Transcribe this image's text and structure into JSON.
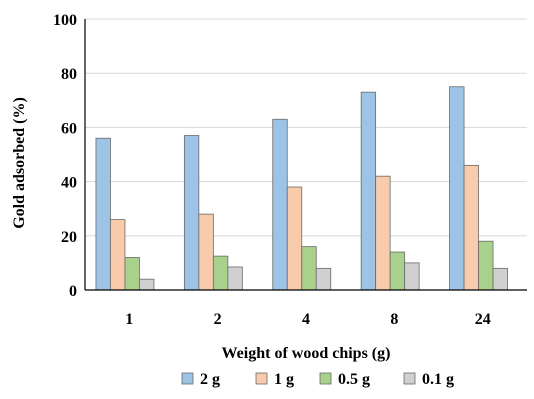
{
  "chart_data": {
    "type": "bar",
    "xlabel": "Weight of wood chips (g)",
    "ylabel": "Gold adsorbed (%)",
    "ylim": [
      0,
      100
    ],
    "yticks": [
      0,
      20,
      40,
      60,
      80,
      100
    ],
    "categories": [
      "1",
      "2",
      "4",
      "8",
      "24"
    ],
    "grid": true,
    "legend_position": "bottom",
    "series": [
      {
        "name": "2 g",
        "color": "#9dc3e6",
        "values": [
          56,
          57,
          63,
          73,
          75
        ]
      },
      {
        "name": "1 g",
        "color": "#f8cbad",
        "values": [
          26,
          28,
          38,
          42,
          46
        ]
      },
      {
        "name": "0.5 g",
        "color": "#a9d18e",
        "values": [
          12,
          12.5,
          16,
          14,
          18
        ]
      },
      {
        "name": "0.1 g",
        "color": "#d0d0d0",
        "values": [
          4,
          8.5,
          8,
          10,
          8
        ]
      }
    ]
  }
}
